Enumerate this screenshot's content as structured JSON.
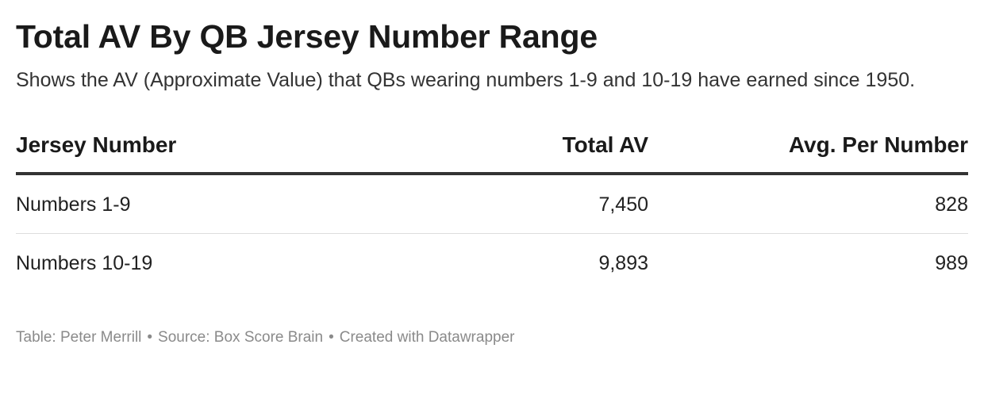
{
  "chart_data": {
    "type": "table",
    "title": "Total AV By QB Jersey Number Range",
    "subtitle": "Shows the AV (Approximate Value) that QBs wearing numbers 1-9 and 10-19 have earned since 1950.",
    "columns": [
      "Jersey Number",
      "Total AV",
      "Avg. Per Number"
    ],
    "rows": [
      [
        "Numbers 1-9",
        "7,450",
        "828"
      ],
      [
        "Numbers 10-19",
        "9,893",
        "989"
      ]
    ],
    "values": {
      "Numbers 1-9": {
        "total_av": 7450,
        "avg_per_number": 828
      },
      "Numbers 10-19": {
        "total_av": 9893,
        "avg_per_number": 989
      }
    }
  },
  "footer": {
    "table_credit": "Table: Peter Merrill",
    "source": "Source: Box Score Brain",
    "created_with": "Created with Datawrapper",
    "separator": "•"
  },
  "colors": {
    "text": "#1a1a1a",
    "header_rule": "#333333",
    "row_divider": "#dddddd",
    "footer_text": "#8a8a8a"
  }
}
